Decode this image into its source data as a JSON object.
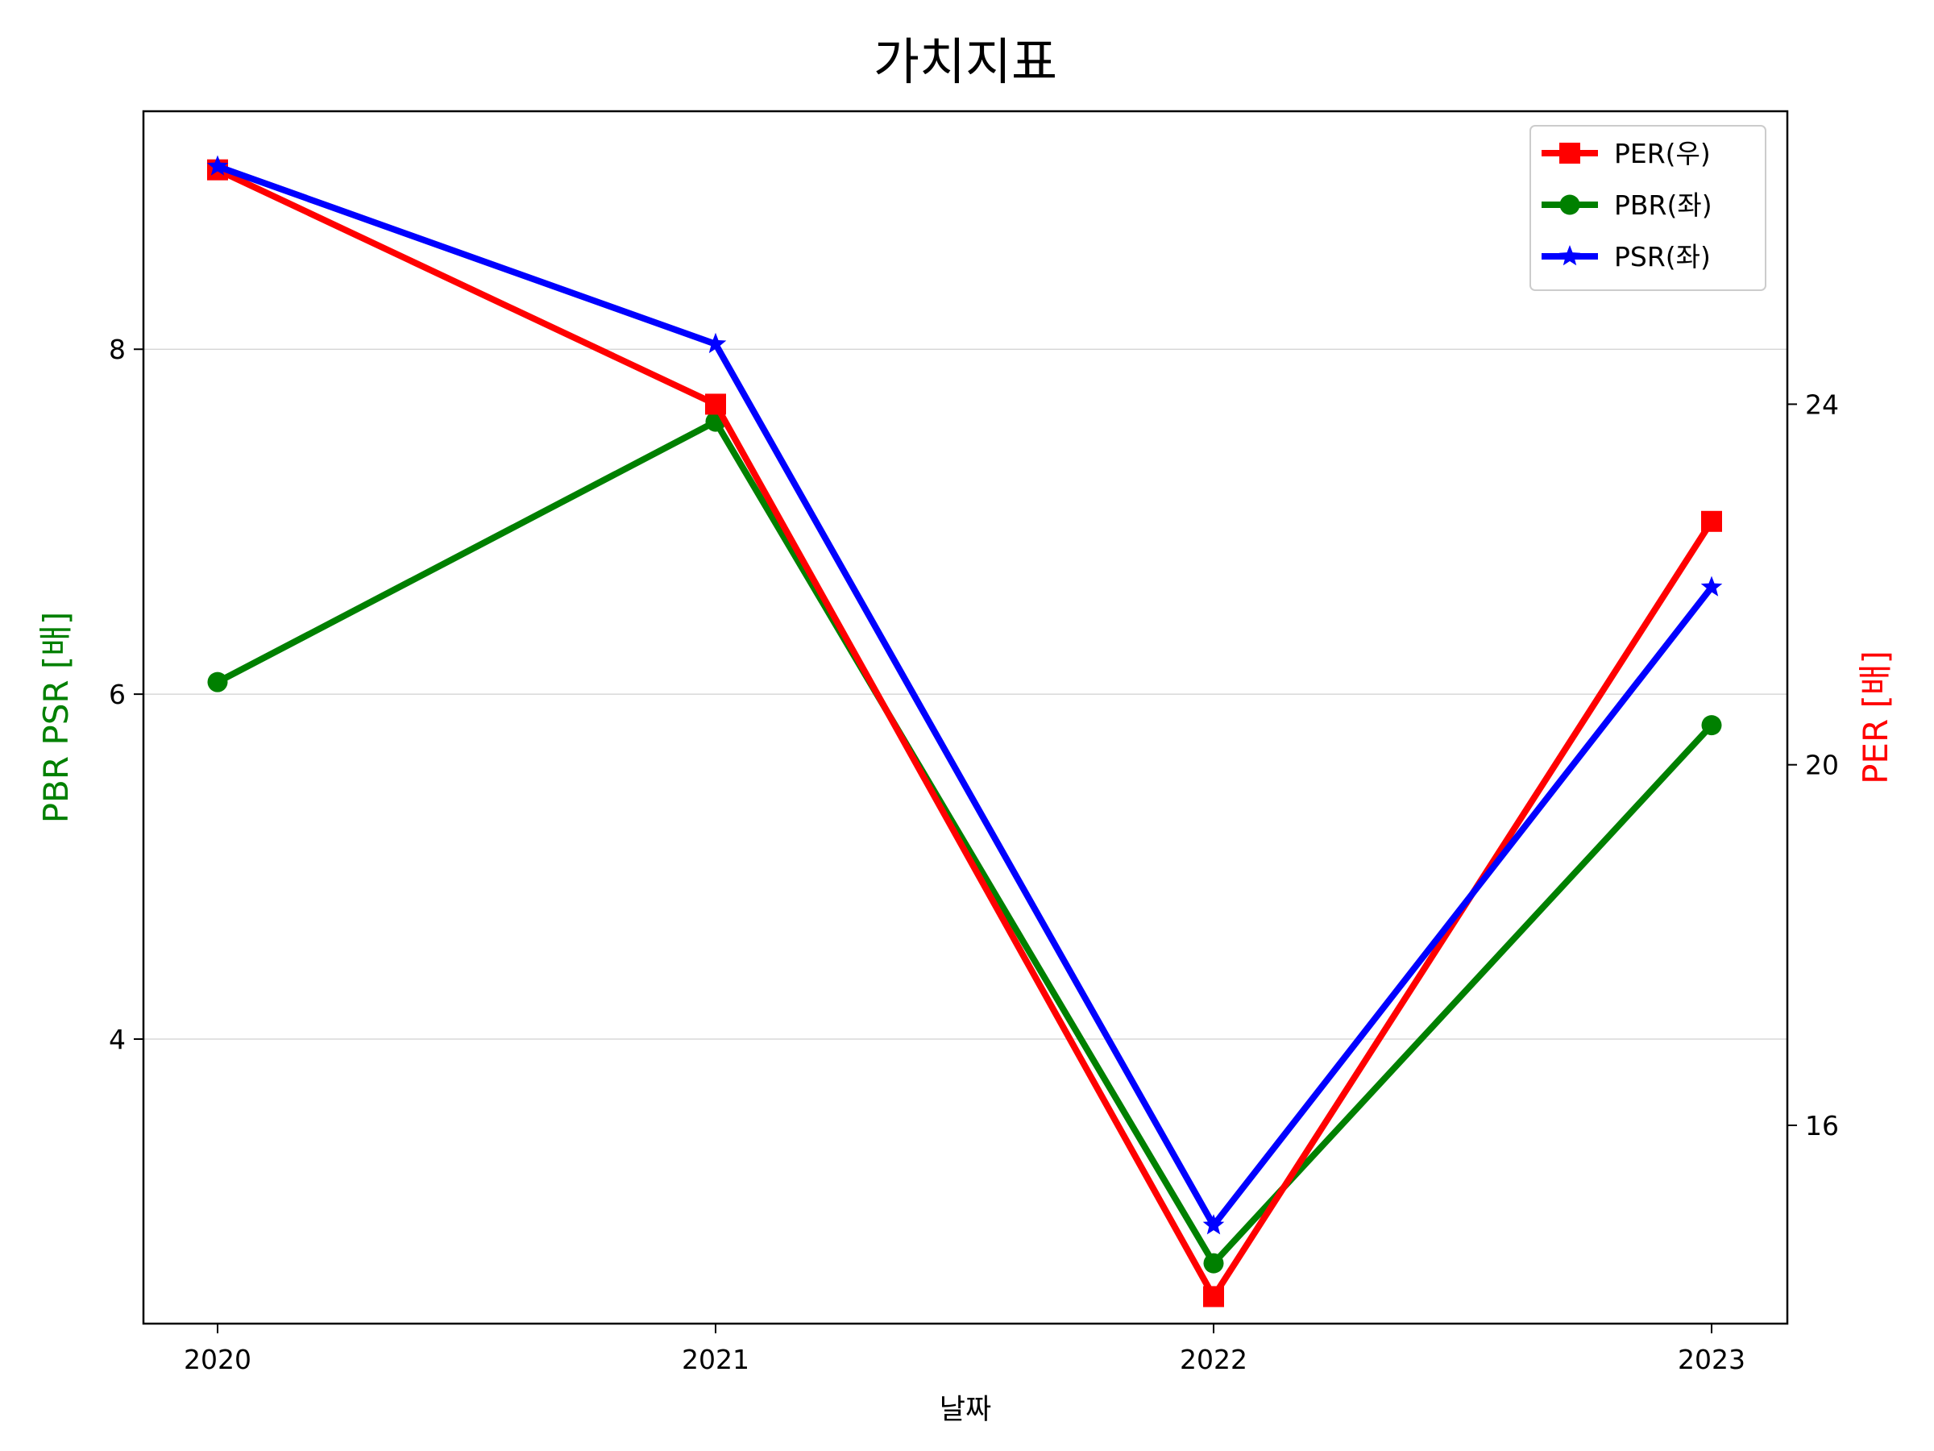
{
  "chart_data": {
    "type": "line",
    "title": "가치지표",
    "xlabel": "날짜",
    "ylabel_left": "PBR PSR [배]",
    "ylabel_right": "PER [배]",
    "colors": {
      "left_label": "#008000",
      "right_label": "#ff0000"
    },
    "x": [
      "2020",
      "2021",
      "2022",
      "2023"
    ],
    "ylim_left": [
      2.35,
      9.38
    ],
    "ylim_right": [
      13.8,
      27.25
    ],
    "yticks_left": [
      4,
      6,
      8
    ],
    "yticks_right": [
      16,
      20,
      24
    ],
    "grid": "horizontal",
    "legend_position": "top-right",
    "series": [
      {
        "name": "PER(우)",
        "axis": "right",
        "color": "#ff0000",
        "marker": "square",
        "values": [
          26.6,
          24.0,
          14.1,
          22.7
        ]
      },
      {
        "name": "PBR(좌)",
        "axis": "left",
        "color": "#008000",
        "marker": "circle",
        "values": [
          6.07,
          7.58,
          2.7,
          5.82
        ]
      },
      {
        "name": "PSR(좌)",
        "axis": "left",
        "color": "#0000ff",
        "marker": "star",
        "values": [
          9.06,
          8.03,
          2.92,
          6.62
        ]
      }
    ]
  }
}
